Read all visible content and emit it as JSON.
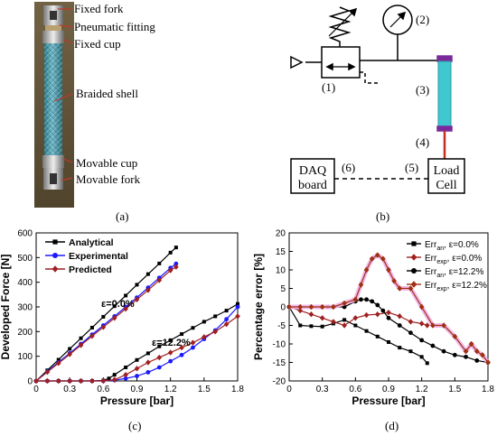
{
  "panel_labels": {
    "a": "(a)",
    "b": "(b)",
    "c": "(c)",
    "d": "(d)"
  },
  "photo_annotations": {
    "fixed_fork": "Fixed fork",
    "pneumatic_fitting": "Pneumatic fitting",
    "fixed_cup": "Fixed cup",
    "braided_shell": "Braided shell",
    "movable_cup": "Movable cup",
    "movable_fork": "Movable fork"
  },
  "schematic": {
    "n1": "(1)",
    "n2": "(2)",
    "n3": "(3)",
    "n4": "(4)",
    "n5": "(5)",
    "n6": "(6)",
    "daq_line1": "DAQ",
    "daq_line2": "board",
    "load_line1": "Load",
    "load_line2": "Cell"
  },
  "colors": {
    "analytical": "#000000",
    "experimental": "#1a1aff",
    "predicted": "#a02020",
    "err_an": "#000000",
    "err_exp": "#a03010",
    "err_exp_halo": "#f0b0e8",
    "muscle": "#40c8d0",
    "muscle_cap": "#7a2a9a",
    "cable": "#c03020"
  },
  "chart_data": [
    {
      "type": "line",
      "xlabel": "Pressure [bar]",
      "ylabel": "Developed Force [N]",
      "xlim": [
        0,
        1.8
      ],
      "ylim": [
        0,
        600
      ],
      "xticks": [
        "0",
        "0.3",
        "0.6",
        "0.9",
        "1.2",
        "1.5",
        "1.8"
      ],
      "yticks": [
        "0",
        "100",
        "200",
        "300",
        "400",
        "500",
        "600"
      ],
      "legend": "top-left",
      "annotations": [
        "ε=0.0%",
        "ε=12.2%"
      ],
      "series": [
        {
          "name": "Analytical",
          "color": "#000000",
          "marker": "square",
          "groups": [
            {
              "x": [
                0,
                0.1,
                0.2,
                0.3,
                0.4,
                0.5,
                0.6,
                0.7,
                0.8,
                0.9,
                1.0,
                1.1,
                1.2,
                1.25
              ],
              "y": [
                0,
                43,
                86,
                130,
                173,
                216,
                260,
                303,
                346,
                390,
                433,
                476,
                520,
                541
              ]
            },
            {
              "x": [
                0,
                0.1,
                0.2,
                0.3,
                0.4,
                0.5,
                0.6,
                0.65,
                0.7,
                0.8,
                0.9,
                1.0,
                1.1,
                1.2,
                1.3,
                1.4,
                1.5,
                1.6,
                1.7,
                1.8
              ],
              "y": [
                0,
                0,
                0,
                0,
                0,
                0,
                2,
                10,
                25,
                55,
                85,
                112,
                140,
                165,
                190,
                215,
                240,
                262,
                285,
                312
              ]
            }
          ]
        },
        {
          "name": "Experimental",
          "color": "#1a1aff",
          "marker": "circle",
          "groups": [
            {
              "x": [
                0,
                0.1,
                0.2,
                0.3,
                0.4,
                0.5,
                0.6,
                0.7,
                0.8,
                0.9,
                1.0,
                1.1,
                1.2,
                1.25
              ],
              "y": [
                0,
                38,
                76,
                112,
                150,
                188,
                225,
                262,
                300,
                338,
                378,
                418,
                458,
                475
              ]
            },
            {
              "x": [
                0,
                0.1,
                0.2,
                0.3,
                0.4,
                0.5,
                0.6,
                0.7,
                0.8,
                0.9,
                1.0,
                1.1,
                1.2,
                1.3,
                1.4,
                1.5,
                1.6,
                1.7,
                1.8
              ],
              "y": [
                0,
                0,
                0,
                0,
                0,
                0,
                0,
                3,
                10,
                20,
                35,
                55,
                80,
                105,
                135,
                170,
                205,
                250,
                300
              ]
            }
          ]
        },
        {
          "name": "Predicted",
          "color": "#a02020",
          "marker": "diamond",
          "groups": [
            {
              "x": [
                0,
                0.1,
                0.2,
                0.3,
                0.4,
                0.5,
                0.6,
                0.7,
                0.8,
                0.9,
                1.0,
                1.1,
                1.2,
                1.25
              ],
              "y": [
                0,
                36,
                72,
                108,
                145,
                182,
                218,
                255,
                292,
                330,
                368,
                408,
                448,
                462
              ]
            },
            {
              "x": [
                0,
                0.1,
                0.2,
                0.3,
                0.4,
                0.5,
                0.6,
                0.7,
                0.8,
                0.9,
                1.0,
                1.1,
                1.2,
                1.3,
                1.4,
                1.5,
                1.6,
                1.7,
                1.8
              ],
              "y": [
                0,
                0,
                0,
                0,
                0,
                0,
                0,
                5,
                25,
                50,
                75,
                95,
                115,
                135,
                155,
                178,
                200,
                230,
                262
              ]
            }
          ]
        }
      ]
    },
    {
      "type": "line",
      "xlabel": "Pressure [bar]",
      "ylabel": "Percentage error [%]",
      "xlim": [
        0,
        1.8
      ],
      "ylim": [
        -20,
        20
      ],
      "xticks": [
        "0",
        "0.3",
        "0.6",
        "0.9",
        "1.2",
        "1.5",
        "1.8"
      ],
      "yticks": [
        "20",
        "15",
        "10",
        "5",
        "0",
        "-5",
        "-10",
        "-15",
        "-20"
      ],
      "legend": "top-right",
      "series": [
        {
          "name": "Err_an, ε=0.0%",
          "name_main": "Err",
          "name_sub": "an",
          "name_tail": ", ε=0.0%",
          "color": "#000000",
          "marker": "square",
          "x": [
            0,
            0.1,
            0.2,
            0.3,
            0.4,
            0.5,
            0.6,
            0.7,
            0.8,
            0.9,
            1.0,
            1.1,
            1.2,
            1.25
          ],
          "y": [
            0,
            -5,
            -5.2,
            -5.3,
            -4.5,
            -3.5,
            -5,
            -6.5,
            -8,
            -9.5,
            -11,
            -12,
            -13.5,
            -15.2
          ]
        },
        {
          "name": "Err_exp, ε=0.0%",
          "name_main": "Err",
          "name_sub": "exp",
          "name_tail": ", ε=0.0%",
          "color": "#a02020",
          "marker": "diamond",
          "x": [
            0,
            0.1,
            0.2,
            0.3,
            0.4,
            0.5,
            0.6,
            0.7,
            0.8,
            0.9,
            1.0,
            1.1,
            1.2,
            1.25
          ],
          "y": [
            0,
            -1,
            -2,
            -3,
            -4,
            -5,
            -3,
            -2.2,
            -2,
            -1.5,
            -2.5,
            -4,
            -4.5,
            -5
          ]
        },
        {
          "name": "Err_an, ε=12.2%",
          "name_main": "Err",
          "name_sub": "an",
          "name_tail": ", ε=12.2%",
          "color": "#000000",
          "marker": "circle",
          "x": [
            0,
            0.1,
            0.2,
            0.3,
            0.35,
            0.4,
            0.5,
            0.6,
            0.65,
            0.7,
            0.75,
            0.8,
            0.85,
            0.9,
            1.0,
            1.1,
            1.2,
            1.3,
            1.4,
            1.5,
            1.6,
            1.7,
            1.8
          ],
          "y": [
            0,
            0,
            0,
            0,
            0,
            0,
            0,
            1.5,
            2,
            2,
            1.5,
            0.5,
            -1,
            -3,
            -5,
            -7,
            -9,
            -10.5,
            -12,
            -13,
            -13.5,
            -14.5,
            -15
          ]
        },
        {
          "name": "Err_exp, ε=12.2%",
          "name_main": "Err",
          "name_sub": "exp",
          "name_tail": ", ε=12.2%",
          "color": "#a03010",
          "marker": "diamond",
          "x": [
            0,
            0.1,
            0.2,
            0.3,
            0.4,
            0.5,
            0.6,
            0.65,
            0.7,
            0.75,
            0.8,
            0.85,
            0.9,
            0.95,
            1.0,
            1.1,
            1.2,
            1.3,
            1.4,
            1.5,
            1.6,
            1.65,
            1.7,
            1.75,
            1.8
          ],
          "y": [
            0,
            0,
            0,
            0,
            0,
            1,
            2,
            6,
            10,
            13,
            14,
            13,
            10,
            7,
            5,
            5,
            0,
            -5,
            -5,
            -8,
            -12,
            -10,
            -12,
            -13,
            -15
          ]
        }
      ]
    }
  ]
}
